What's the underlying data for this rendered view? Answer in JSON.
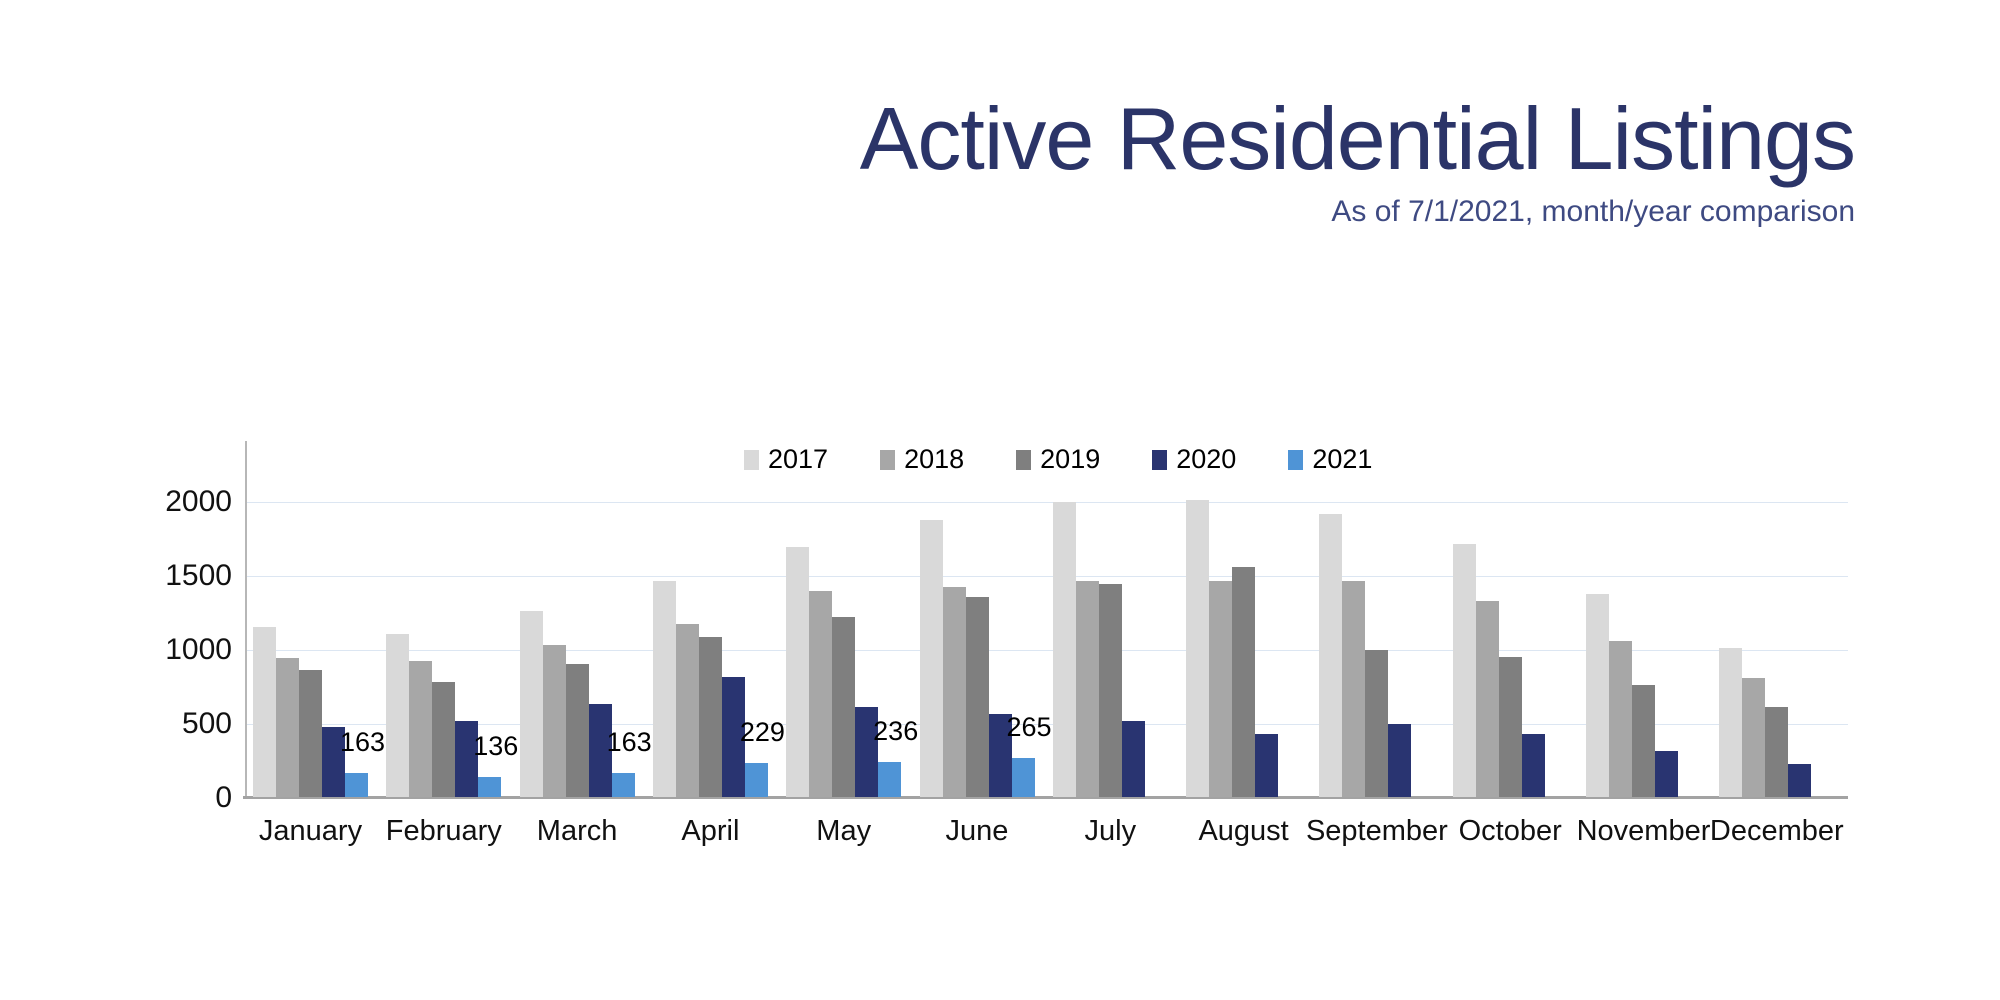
{
  "header": {
    "title": "Active Residential Listings",
    "subtitle": "As of 7/1/2021, month/year comparison",
    "title_color": "#2b3468",
    "subtitle_color": "#3e4a82"
  },
  "chart_data": {
    "type": "bar",
    "title": "Active Residential Listings",
    "subtitle": "As of 7/1/2021, month/year comparison",
    "categories": [
      "January",
      "February",
      "March",
      "April",
      "May",
      "June",
      "July",
      "August",
      "September",
      "October",
      "November",
      "December"
    ],
    "series": [
      {
        "name": "2017",
        "color": "#d9d9d9",
        "values": [
          1150,
          1100,
          1260,
          1460,
          1690,
          1870,
          1990,
          2010,
          1915,
          1710,
          1370,
          1010
        ]
      },
      {
        "name": "2018",
        "color": "#a7a7a7",
        "values": [
          940,
          920,
          1030,
          1170,
          1390,
          1420,
          1460,
          1460,
          1460,
          1325,
          1055,
          805
        ]
      },
      {
        "name": "2019",
        "color": "#7f7f7f",
        "values": [
          860,
          780,
          900,
          1080,
          1215,
          1350,
          1440,
          1555,
          990,
          945,
          760,
          605
        ]
      },
      {
        "name": "2020",
        "color": "#293471",
        "values": [
          470,
          515,
          630,
          810,
          605,
          560,
          515,
          425,
          490,
          425,
          310,
          220
        ]
      },
      {
        "name": "2021",
        "color": "#4f94d6",
        "values": [
          163,
          136,
          163,
          229,
          236,
          265,
          null,
          null,
          null,
          null,
          null,
          null
        ],
        "show_data_labels": true
      }
    ],
    "data_labels": [
      "163",
      "136",
      "163",
      "229",
      "236",
      "265"
    ],
    "ylim": [
      0,
      2385
    ],
    "yticks": [
      0,
      500,
      1000,
      1500,
      2000
    ],
    "grid": "horizontal",
    "gridline_color": "#dce6f2",
    "baseline_color": "#a3a3a3",
    "axis_line_color": "#b7b7b7",
    "legend_position": "top",
    "legend_labels": [
      "2017",
      "2018",
      "2019",
      "2020",
      "2021"
    ]
  }
}
